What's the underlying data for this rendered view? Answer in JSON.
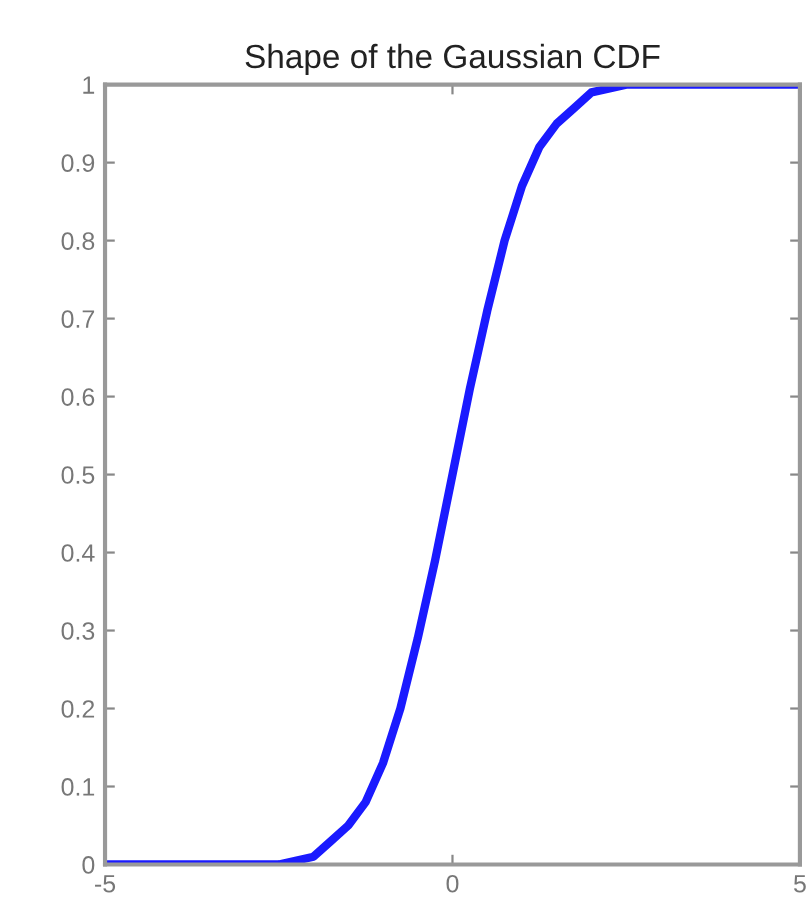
{
  "chart_data": {
    "type": "line",
    "title": "Shape of the Gaussian CDF",
    "x": [
      -5,
      -3,
      -2.5,
      -2,
      -1.75,
      -1.5,
      -1.25,
      -1,
      -0.75,
      -0.5,
      -0.25,
      0,
      0.25,
      0.5,
      0.75,
      1,
      1.25,
      1.5,
      1.75,
      2,
      2.5,
      3,
      5
    ],
    "series": [
      {
        "color": "#1a1aff",
        "values": [
          0,
          0,
          0,
          0.01,
          0.03,
          0.05,
          0.08,
          0.13,
          0.2,
          0.29,
          0.39,
          0.5,
          0.61,
          0.71,
          0.8,
          0.87,
          0.92,
          0.95,
          0.97,
          0.99,
          1,
          1,
          1
        ]
      }
    ],
    "xlim": [
      -5,
      5
    ],
    "xticks": [
      -5,
      0,
      5
    ],
    "ylim": [
      0,
      1
    ],
    "yticks": [
      0,
      0.1,
      0.2,
      0.3,
      0.4,
      0.5,
      0.6,
      0.7,
      0.8,
      0.9,
      1
    ],
    "grid": false,
    "legend": false,
    "marker": "none",
    "line_style": "solid"
  }
}
